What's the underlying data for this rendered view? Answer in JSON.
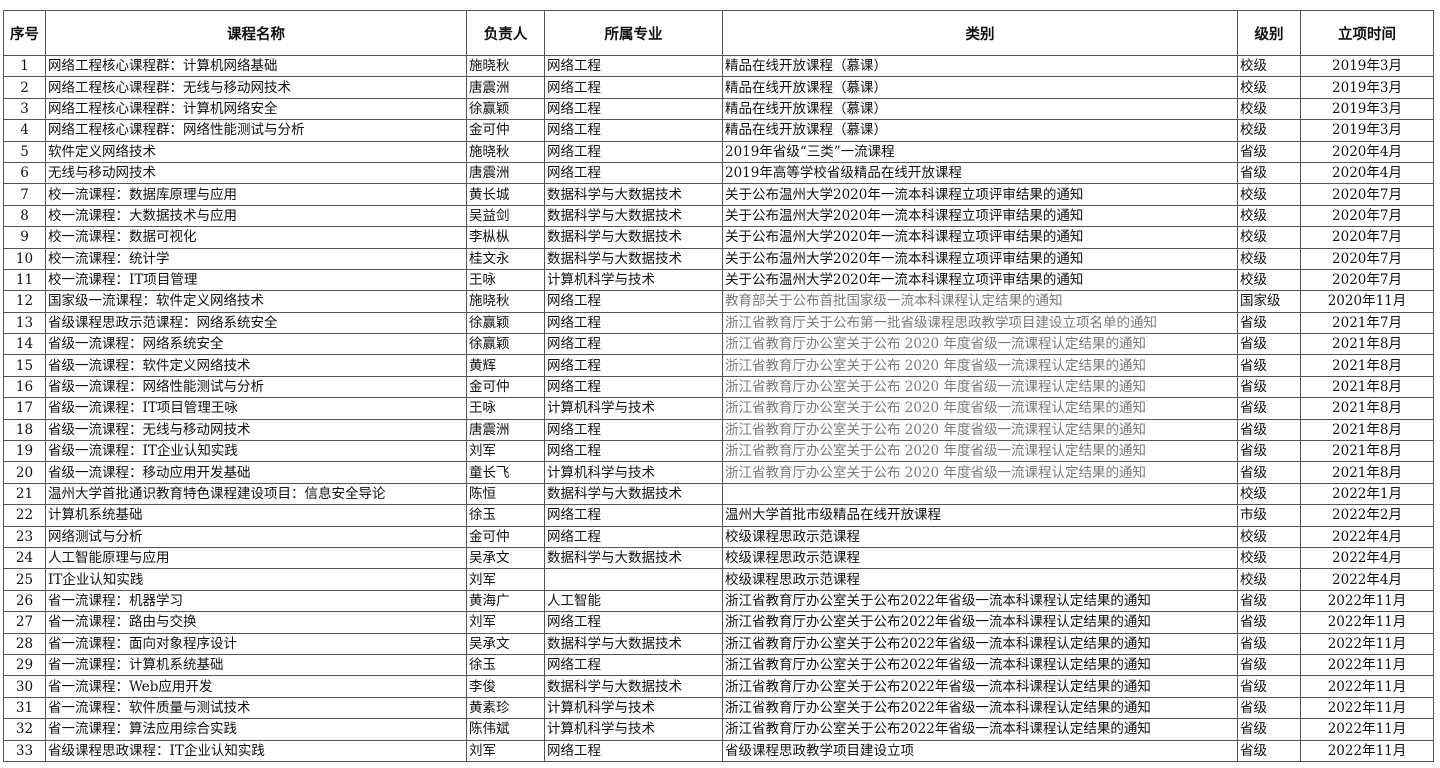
{
  "headers": [
    "序号",
    "课程名称",
    "负责人",
    "所属专业",
    "类别",
    "级别",
    "立项时间"
  ],
  "colors": {
    "grey_text": "#7a7a7a",
    "border": "#555555"
  },
  "rows": [
    {
      "no": "1",
      "name": "网络工程核心课程群：计算机网络基础",
      "owner": "施晓秋",
      "major": "网络工程",
      "category": "精品在线开放课程（慕课）",
      "level": "校级",
      "date": "2019年3月",
      "grey": false
    },
    {
      "no": "2",
      "name": "网络工程核心课程群：无线与移动网技术",
      "owner": "唐震洲",
      "major": "网络工程",
      "category": "精品在线开放课程（慕课）",
      "level": "校级",
      "date": "2019年3月",
      "grey": false
    },
    {
      "no": "3",
      "name": "网络工程核心课程群：计算机网络安全",
      "owner": "徐赢颖",
      "major": "网络工程",
      "category": "精品在线开放课程（慕课）",
      "level": "校级",
      "date": "2019年3月",
      "grey": false
    },
    {
      "no": "4",
      "name": "网络工程核心课程群：网络性能测试与分析",
      "owner": "金可仲",
      "major": "网络工程",
      "category": "精品在线开放课程（慕课）",
      "level": "校级",
      "date": "2019年3月",
      "grey": false
    },
    {
      "no": "5",
      "name": "软件定义网络技术",
      "owner": "施晓秋",
      "major": "网络工程",
      "category": "2019年省级“三类”一流课程",
      "level": "省级",
      "date": "2020年4月",
      "grey": false
    },
    {
      "no": "6",
      "name": "无线与移动网技术",
      "owner": "唐震洲",
      "major": "网络工程",
      "category": "2019年高等学校省级精品在线开放课程",
      "level": "省级",
      "date": "2020年4月",
      "grey": false
    },
    {
      "no": "7",
      "name": "校一流课程：数据库原理与应用",
      "owner": "黄长城",
      "major": "数据科学与大数据技术",
      "category": "关于公布温州大学2020年一流本科课程立项评审结果的通知",
      "level": "校级",
      "date": "2020年7月",
      "grey": false
    },
    {
      "no": "8",
      "name": "校一流课程：大数据技术与应用",
      "owner": "吴益剑",
      "major": "数据科学与大数据技术",
      "category": "关于公布温州大学2020年一流本科课程立项评审结果的通知",
      "level": "校级",
      "date": "2020年7月",
      "grey": false
    },
    {
      "no": "9",
      "name": "校一流课程：数据可视化",
      "owner": "李枞枞",
      "major": "数据科学与大数据技术",
      "category": "关于公布温州大学2020年一流本科课程立项评审结果的通知",
      "level": "校级",
      "date": "2020年7月",
      "grey": false
    },
    {
      "no": "10",
      "name": "校一流课程：统计学",
      "owner": "桂文永",
      "major": "数据科学与大数据技术",
      "category": "关于公布温州大学2020年一流本科课程立项评审结果的通知",
      "level": "校级",
      "date": "2020年7月",
      "grey": false
    },
    {
      "no": "11",
      "name": "校一流课程：IT项目管理",
      "owner": "王咏",
      "major": "计算机科学与技术",
      "category": "关于公布温州大学2020年一流本科课程立项评审结果的通知",
      "level": "校级",
      "date": "2020年7月",
      "grey": false
    },
    {
      "no": "12",
      "name": "国家级一流课程：软件定义网络技术",
      "owner": "施晓秋",
      "major": "网络工程",
      "category": "教育部关于公布首批国家级一流本科课程认定结果的通知",
      "level": "国家级",
      "date": "2020年11月",
      "grey": true
    },
    {
      "no": "13",
      "name": "省级课程思政示范课程：网络系统安全",
      "owner": "徐赢颖",
      "major": "网络工程",
      "category": "浙江省教育厅关于公布第一批省级课程思政教学项目建设立项名单的通知",
      "level": "省级",
      "date": "2021年7月",
      "grey": true
    },
    {
      "no": "14",
      "name": "省级一流课程：网络系统安全",
      "owner": "徐赢颖",
      "major": "网络工程",
      "category": "浙江省教育厅办公室关于公布 2020 年度省级一流课程认定结果的通知",
      "level": "省级",
      "date": "2021年8月",
      "grey": true
    },
    {
      "no": "15",
      "name": "省级一流课程：软件定义网络技术",
      "owner": "黄辉",
      "major": "网络工程",
      "category": "浙江省教育厅办公室关于公布 2020 年度省级一流课程认定结果的通知",
      "level": "省级",
      "date": "2021年8月",
      "grey": true
    },
    {
      "no": "16",
      "name": "省级一流课程：网络性能测试与分析",
      "owner": "金可仲",
      "major": "网络工程",
      "category": "浙江省教育厅办公室关于公布 2020 年度省级一流课程认定结果的通知",
      "level": "省级",
      "date": "2021年8月",
      "grey": true
    },
    {
      "no": "17",
      "name": "省级一流课程：IT项目管理王咏",
      "owner": "王咏",
      "major": "计算机科学与技术",
      "category": "浙江省教育厅办公室关于公布 2020 年度省级一流课程认定结果的通知",
      "level": "省级",
      "date": "2021年8月",
      "grey": true
    },
    {
      "no": "18",
      "name": "省级一流课程：无线与移动网技术",
      "owner": "唐震洲",
      "major": "网络工程",
      "category": "浙江省教育厅办公室关于公布 2020 年度省级一流课程认定结果的通知",
      "level": "省级",
      "date": "2021年8月",
      "grey": true
    },
    {
      "no": "19",
      "name": "省级一流课程：IT企业认知实践",
      "owner": "刘军",
      "major": "网络工程",
      "category": "浙江省教育厅办公室关于公布 2020 年度省级一流课程认定结果的通知",
      "level": "省级",
      "date": "2021年8月",
      "grey": true
    },
    {
      "no": "20",
      "name": "省级一流课程：移动应用开发基础",
      "owner": "童长飞",
      "major": "计算机科学与技术",
      "category": "浙江省教育厅办公室关于公布 2020 年度省级一流课程认定结果的通知",
      "level": "省级",
      "date": "2021年8月",
      "grey": true
    },
    {
      "no": "21",
      "name": "温州大学首批通识教育特色课程建设项目：信息安全导论",
      "owner": "陈恒",
      "major": "数据科学与大数据技术",
      "category": "",
      "level": "校级",
      "date": "2022年1月",
      "grey": false
    },
    {
      "no": "22",
      "name": "计算机系统基础",
      "owner": "徐玉",
      "major": "网络工程",
      "category": "温州大学首批市级精品在线开放课程",
      "level": "市级",
      "date": "2022年2月",
      "grey": false
    },
    {
      "no": "23",
      "name": "网络测试与分析",
      "owner": "金可仲",
      "major": "网络工程",
      "category": "校级课程思政示范课程",
      "level": "校级",
      "date": "2022年4月",
      "grey": false
    },
    {
      "no": "24",
      "name": "人工智能原理与应用",
      "owner": "吴承文",
      "major": "数据科学与大数据技术",
      "category": "校级课程思政示范课程",
      "level": "校级",
      "date": "2022年4月",
      "grey": false
    },
    {
      "no": "25",
      "name": "IT企业认知实践",
      "owner": "刘军",
      "major": "",
      "category": "校级课程思政示范课程",
      "level": "校级",
      "date": "2022年4月",
      "grey": false
    },
    {
      "no": "26",
      "name": "省一流课程：机器学习",
      "owner": "黄海广",
      "major": "人工智能",
      "category": "浙江省教育厅办公室关于公布2022年省级一流本科课程认定结果的通知",
      "level": "省级",
      "date": "2022年11月",
      "grey": false
    },
    {
      "no": "27",
      "name": "省一流课程：路由与交换",
      "owner": "刘军",
      "major": "网络工程",
      "category": "浙江省教育厅办公室关于公布2022年省级一流本科课程认定结果的通知",
      "level": "省级",
      "date": "2022年11月",
      "grey": false
    },
    {
      "no": "28",
      "name": "省一流课程：面向对象程序设计",
      "owner": "吴承文",
      "major": "数据科学与大数据技术",
      "category": "浙江省教育厅办公室关于公布2022年省级一流本科课程认定结果的通知",
      "level": "省级",
      "date": "2022年11月",
      "grey": false
    },
    {
      "no": "29",
      "name": "省一流课程：计算机系统基础",
      "owner": "徐玉",
      "major": "网络工程",
      "category": "浙江省教育厅办公室关于公布2022年省级一流本科课程认定结果的通知",
      "level": "省级",
      "date": "2022年11月",
      "grey": false
    },
    {
      "no": "30",
      "name": "省一流课程：Web应用开发",
      "owner": "李俊",
      "major": "数据科学与大数据技术",
      "category": "浙江省教育厅办公室关于公布2022年省级一流本科课程认定结果的通知",
      "level": "省级",
      "date": "2022年11月",
      "grey": false
    },
    {
      "no": "31",
      "name": "省一流课程：软件质量与测试技术",
      "owner": "黄素珍",
      "major": "计算机科学与技术",
      "category": "浙江省教育厅办公室关于公布2022年省级一流本科课程认定结果的通知",
      "level": "省级",
      "date": "2022年11月",
      "grey": false
    },
    {
      "no": "32",
      "name": "省一流课程：算法应用综合实践",
      "owner": "陈伟斌",
      "major": "计算机科学与技术",
      "category": "浙江省教育厅办公室关于公布2022年省级一流本科课程认定结果的通知",
      "level": "省级",
      "date": "2022年11月",
      "grey": false
    },
    {
      "no": "33",
      "name": "省级课程思政课程：IT企业认知实践",
      "owner": "刘军",
      "major": "网络工程",
      "category": "省级课程思政教学项目建设立项",
      "level": "省级",
      "date": "2022年11月",
      "grey": false
    }
  ]
}
